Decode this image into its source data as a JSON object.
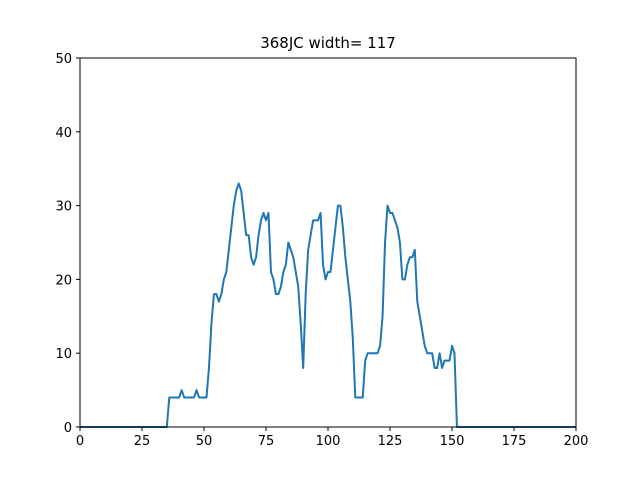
{
  "chart_data": {
    "type": "line",
    "title": "368JC width= 117",
    "x": [
      0,
      35,
      36,
      37,
      38,
      39,
      40,
      41,
      42,
      43,
      44,
      45,
      46,
      47,
      48,
      49,
      50,
      51,
      52,
      53,
      54,
      55,
      56,
      57,
      58,
      59,
      60,
      61,
      62,
      63,
      64,
      65,
      66,
      67,
      68,
      69,
      70,
      71,
      72,
      73,
      74,
      75,
      76,
      77,
      78,
      79,
      80,
      81,
      82,
      83,
      84,
      85,
      86,
      87,
      88,
      89,
      90,
      91,
      92,
      93,
      94,
      95,
      96,
      97,
      98,
      99,
      100,
      101,
      102,
      103,
      104,
      105,
      106,
      107,
      108,
      109,
      110,
      111,
      112,
      113,
      114,
      115,
      116,
      117,
      118,
      119,
      120,
      121,
      122,
      123,
      124,
      125,
      126,
      127,
      128,
      129,
      130,
      131,
      132,
      133,
      134,
      135,
      136,
      137,
      138,
      139,
      140,
      141,
      142,
      143,
      144,
      145,
      146,
      147,
      148,
      149,
      150,
      151,
      152,
      200
    ],
    "values": [
      0,
      0,
      4,
      4,
      4,
      4,
      4,
      5,
      4,
      4,
      4,
      4,
      4,
      5,
      4,
      4,
      4,
      4,
      8,
      14,
      18,
      18,
      17,
      18,
      20,
      21,
      24,
      27,
      30,
      32,
      33,
      32,
      29,
      26,
      26,
      23,
      22,
      23,
      26,
      28,
      29,
      28,
      29,
      21,
      20,
      18,
      18,
      19,
      21,
      22,
      25,
      24,
      23,
      21,
      19,
      14,
      8,
      18,
      24,
      26,
      28,
      28,
      28,
      29,
      22,
      20,
      21,
      21,
      24,
      27,
      30,
      30,
      27,
      23,
      20,
      17,
      12,
      4,
      4,
      4,
      4,
      9,
      10,
      10,
      10,
      10,
      10,
      11,
      15,
      25,
      30,
      29,
      29,
      28,
      27,
      25,
      20,
      20,
      22,
      23,
      23,
      24,
      17,
      15,
      13,
      11,
      10,
      10,
      10,
      8,
      8,
      10,
      8,
      9,
      9,
      9,
      11,
      10,
      0,
      0
    ],
    "color": "#1f77b4",
    "xlim": [
      0,
      200
    ],
    "xticks": [
      0,
      25,
      50,
      75,
      100,
      125,
      150,
      175,
      200
    ],
    "ylim": [
      0,
      50
    ],
    "yticks": [
      0,
      10,
      20,
      30,
      40,
      50
    ]
  }
}
